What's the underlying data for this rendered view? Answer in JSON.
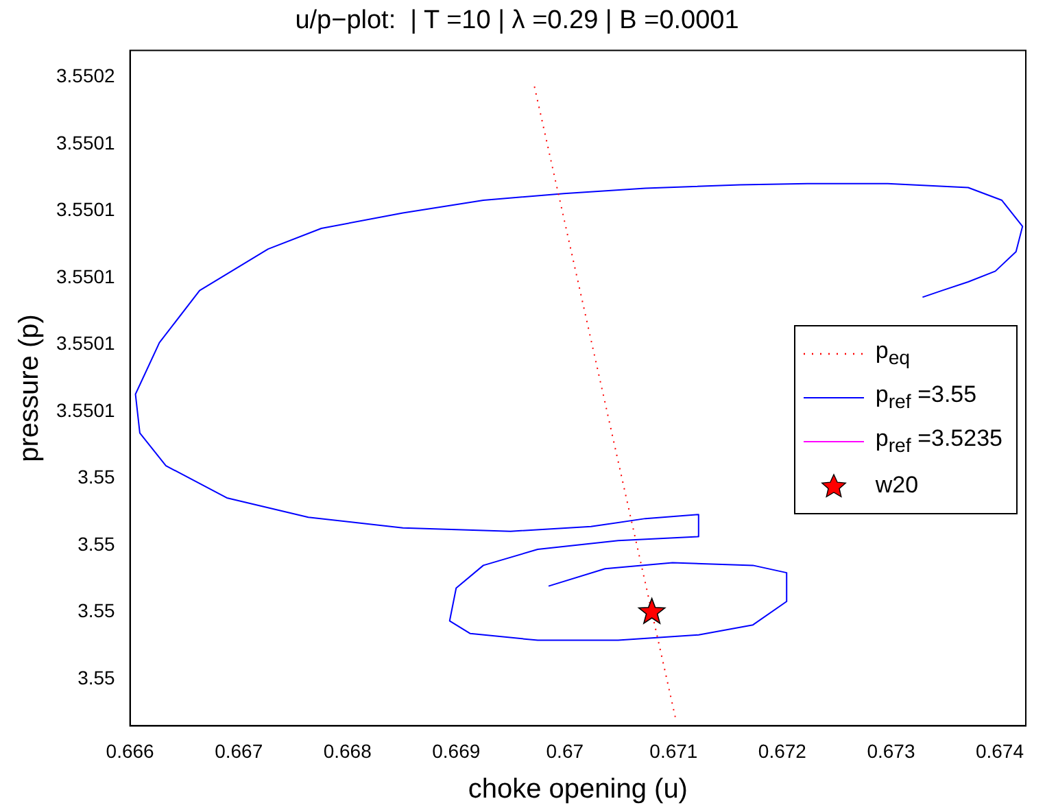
{
  "chart_data": {
    "type": "line",
    "title": "u/p−plot:  | T =10 | λ =0.29 | B =0.0001",
    "xlabel": "choke opening (u)",
    "ylabel": "pressure (p)",
    "xlim": [
      0.666,
      0.67424
    ],
    "xticks": [
      0.666,
      0.667,
      0.668,
      0.669,
      0.67,
      0.671,
      0.672,
      0.673,
      0.674
    ],
    "ylim": [
      3.549966,
      3.550168
    ],
    "yticks": [
      {
        "value": 3.54998,
        "label": "3.55"
      },
      3.55,
      {
        "value": 3.55002,
        "label": "3.55"
      },
      {
        "value": 3.55004,
        "label": "3.55"
      },
      {
        "value": 3.55006,
        "label": "3.5501"
      },
      {
        "value": 3.55008,
        "label": "3.5501"
      },
      {
        "value": 3.5501,
        "label": "3.5501"
      },
      {
        "value": 3.55012,
        "label": "3.5501"
      },
      {
        "value": 3.55014,
        "label": "3.5501"
      },
      {
        "value": 3.55016,
        "label": "3.5502"
      }
    ],
    "grid": false,
    "legend": "right",
    "series": [
      {
        "name": "p$_{eq}$",
        "line_style": "dotted",
        "marker": "none",
        "color": "#ff0000",
        "x": [
          0.66972,
          0.67102
        ],
        "values": [
          3.5501572,
          3.549968
        ]
      },
      {
        "name": "p$_{ref}$ =3.55",
        "line_style": "solid",
        "marker": "none",
        "color": "#0000ff",
        "x": [
          0.67329,
          0.67347,
          0.67371,
          0.67396,
          0.67415,
          0.67421,
          0.67402,
          0.67371,
          0.67297,
          0.67223,
          0.67161,
          0.67074,
          0.66999,
          0.66925,
          0.66851,
          0.66776,
          0.66727,
          0.66664,
          0.66627,
          0.66605,
          0.66609,
          0.66633,
          0.66689,
          0.66764,
          0.66851,
          0.6695,
          0.67024,
          0.67074,
          0.67123,
          0.67123,
          0.67049,
          0.66975,
          0.66925,
          0.669,
          0.66894,
          0.66913,
          0.66975,
          0.67049,
          0.67123,
          0.67173,
          0.67204,
          0.67204,
          0.67173,
          0.67099,
          0.67037,
          0.66985
        ],
        "values": [
          3.5500942,
          3.5500962,
          3.5500988,
          3.550102,
          3.5501078,
          3.5501154,
          3.5501232,
          3.550127,
          3.5501282,
          3.5501282,
          3.5501278,
          3.5501268,
          3.5501252,
          3.5501232,
          3.5501194,
          3.5501148,
          3.5501086,
          3.5500962,
          3.5500806,
          3.5500652,
          3.5500536,
          3.5500438,
          3.5500342,
          3.5500284,
          3.5500252,
          3.5500242,
          3.5500256,
          3.550028,
          3.5500292,
          3.5500226,
          3.5500214,
          3.5500188,
          3.550014,
          3.5500072,
          3.5499974,
          3.5499936,
          3.5499916,
          3.5499916,
          3.5499932,
          3.5499962,
          3.5500032,
          3.5500118,
          3.550014,
          3.5500148,
          3.550013,
          3.5500078
        ]
      },
      {
        "name": "p$_{ref}$ =3.5235",
        "line_style": "solid",
        "marker": "none",
        "color": "#ff00ff"
      },
      {
        "name": "w20",
        "type": "scatter",
        "marker": "star",
        "color": "#ff0000",
        "x": [
          0.6708
        ],
        "values": [
          3.55
        ]
      }
    ]
  }
}
